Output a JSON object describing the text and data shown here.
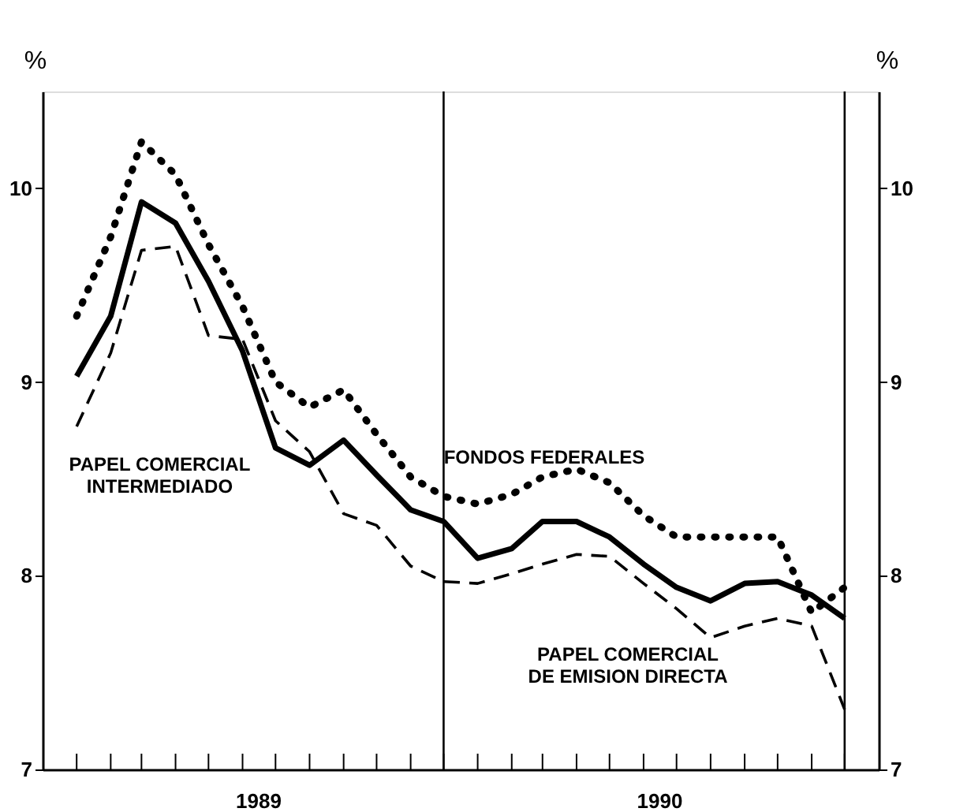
{
  "chart_data": {
    "type": "line",
    "x": [
      "1989-01",
      "1989-02",
      "1989-03",
      "1989-04",
      "1989-05",
      "1989-06",
      "1989-07",
      "1989-08",
      "1989-09",
      "1989-10",
      "1989-11",
      "1989-12",
      "1990-01",
      "1990-02",
      "1990-03",
      "1990-04",
      "1990-05",
      "1990-06",
      "1990-07",
      "1990-08",
      "1990-09",
      "1990-10",
      "1990-11",
      "1990-12"
    ],
    "series": [
      {
        "name": "FONDOS FEDERALES",
        "color": "#000000",
        "line_style": "dotted",
        "values": [
          9.34,
          9.75,
          10.24,
          10.07,
          9.71,
          9.39,
          9.0,
          8.87,
          8.96,
          8.73,
          8.51,
          8.41,
          8.37,
          8.42,
          8.51,
          8.55,
          8.48,
          8.31,
          8.2,
          8.2,
          8.2,
          8.2,
          7.81,
          7.94
        ]
      },
      {
        "name": "PAPEL COMERCIAL\nINTERMEDIADO",
        "color": "#000000",
        "line_style": "solid",
        "values": [
          9.03,
          9.34,
          9.93,
          9.82,
          9.52,
          9.16,
          8.66,
          8.57,
          8.7,
          8.52,
          8.34,
          8.28,
          8.09,
          8.14,
          8.28,
          8.28,
          8.2,
          8.06,
          7.94,
          7.87,
          7.96,
          7.97,
          7.9,
          7.78
        ]
      },
      {
        "name": "PAPEL COMERCIAL\nDE EMISION DIRECTA",
        "color": "#000000",
        "line_style": "dashed",
        "values": [
          8.77,
          9.15,
          9.68,
          9.7,
          9.24,
          9.22,
          8.8,
          8.64,
          8.32,
          8.26,
          8.05,
          7.97,
          7.96,
          8.01,
          8.06,
          8.11,
          8.1,
          7.96,
          7.83,
          7.68,
          7.74,
          7.78,
          7.74,
          7.31
        ]
      }
    ],
    "xlim": [
      "1988-12",
      "1991-01"
    ],
    "xticks": [
      {
        "value": "1989-01",
        "label": null
      },
      {
        "value": "1989-02",
        "label": null
      },
      {
        "value": "1989-03",
        "label": null
      },
      {
        "value": "1989-04",
        "label": null
      },
      {
        "value": "1989-05",
        "label": null
      },
      {
        "value": "1989-06",
        "label": null
      },
      {
        "value": "1989-06-15",
        "label": "1989"
      },
      {
        "value": "1989-07",
        "label": null
      },
      {
        "value": "1989-08",
        "label": null
      },
      {
        "value": "1989-09",
        "label": null
      },
      {
        "value": "1989-10",
        "label": null
      },
      {
        "value": "1989-11",
        "label": null
      },
      {
        "value": "1989-12",
        "label": null
      },
      {
        "value": "1990-01",
        "label": null
      },
      {
        "value": "1990-02",
        "label": null
      },
      {
        "value": "1990-03",
        "label": null
      },
      {
        "value": "1990-04",
        "label": null
      },
      {
        "value": "1990-05",
        "label": null
      },
      {
        "value": "1990-06",
        "label": null
      },
      {
        "value": "1990-06-15",
        "label": "1990"
      },
      {
        "value": "1990-07",
        "label": null
      },
      {
        "value": "1990-08",
        "label": null
      },
      {
        "value": "1990-09",
        "label": null
      },
      {
        "value": "1990-10",
        "label": null
      },
      {
        "value": "1990-11",
        "label": null
      },
      {
        "value": "1990-12",
        "label": null
      }
    ],
    "ylim": [
      7,
      10.5
    ],
    "yticks": [
      7,
      8,
      9,
      10
    ],
    "y2lim": [
      7,
      10.5
    ],
    "y2ticks": [
      7,
      8,
      9,
      10
    ],
    "ylabel": "%",
    "y2label": "%",
    "ref_lines": [
      {
        "axis": "x",
        "value": "1989-12"
      },
      {
        "axis": "x",
        "value": "1990-12"
      }
    ],
    "grid": false,
    "legend": false,
    "marker": "none"
  }
}
